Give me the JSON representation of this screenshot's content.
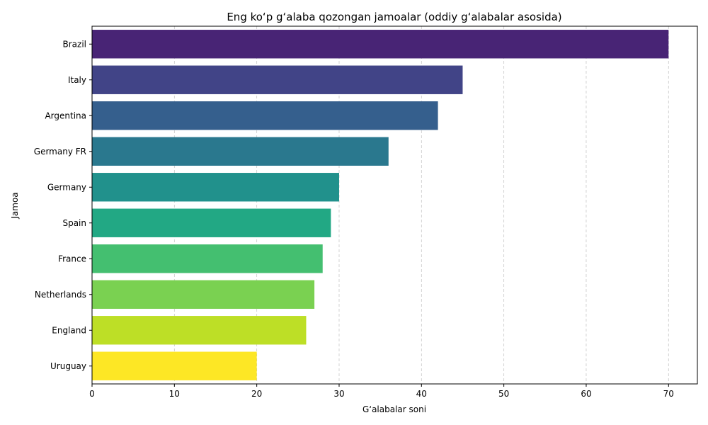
{
  "chart_data": {
    "type": "bar",
    "orientation": "horizontal",
    "title": "Eng koʻp gʻalaba qozongan jamoalar (oddiy gʻalabalar asosida)",
    "xlabel": "Gʻalabalar soni",
    "ylabel": "Jamoa",
    "categories": [
      "Brazil",
      "Italy",
      "Argentina",
      "Germany FR",
      "Germany",
      "Spain",
      "France",
      "Netherlands",
      "England",
      "Uruguay"
    ],
    "values": [
      70,
      45,
      42,
      36,
      30,
      29,
      28,
      27,
      26,
      20
    ],
    "colors": [
      "#482475",
      "#414487",
      "#355f8d",
      "#2a788e",
      "#21918c",
      "#22a884",
      "#44bf70",
      "#7ad151",
      "#bddf26",
      "#fde725"
    ],
    "xlim": [
      0,
      73.5
    ],
    "xticks": [
      0,
      10,
      20,
      30,
      40,
      50,
      60,
      70
    ],
    "grid": "x-dashed",
    "legend": "none"
  }
}
